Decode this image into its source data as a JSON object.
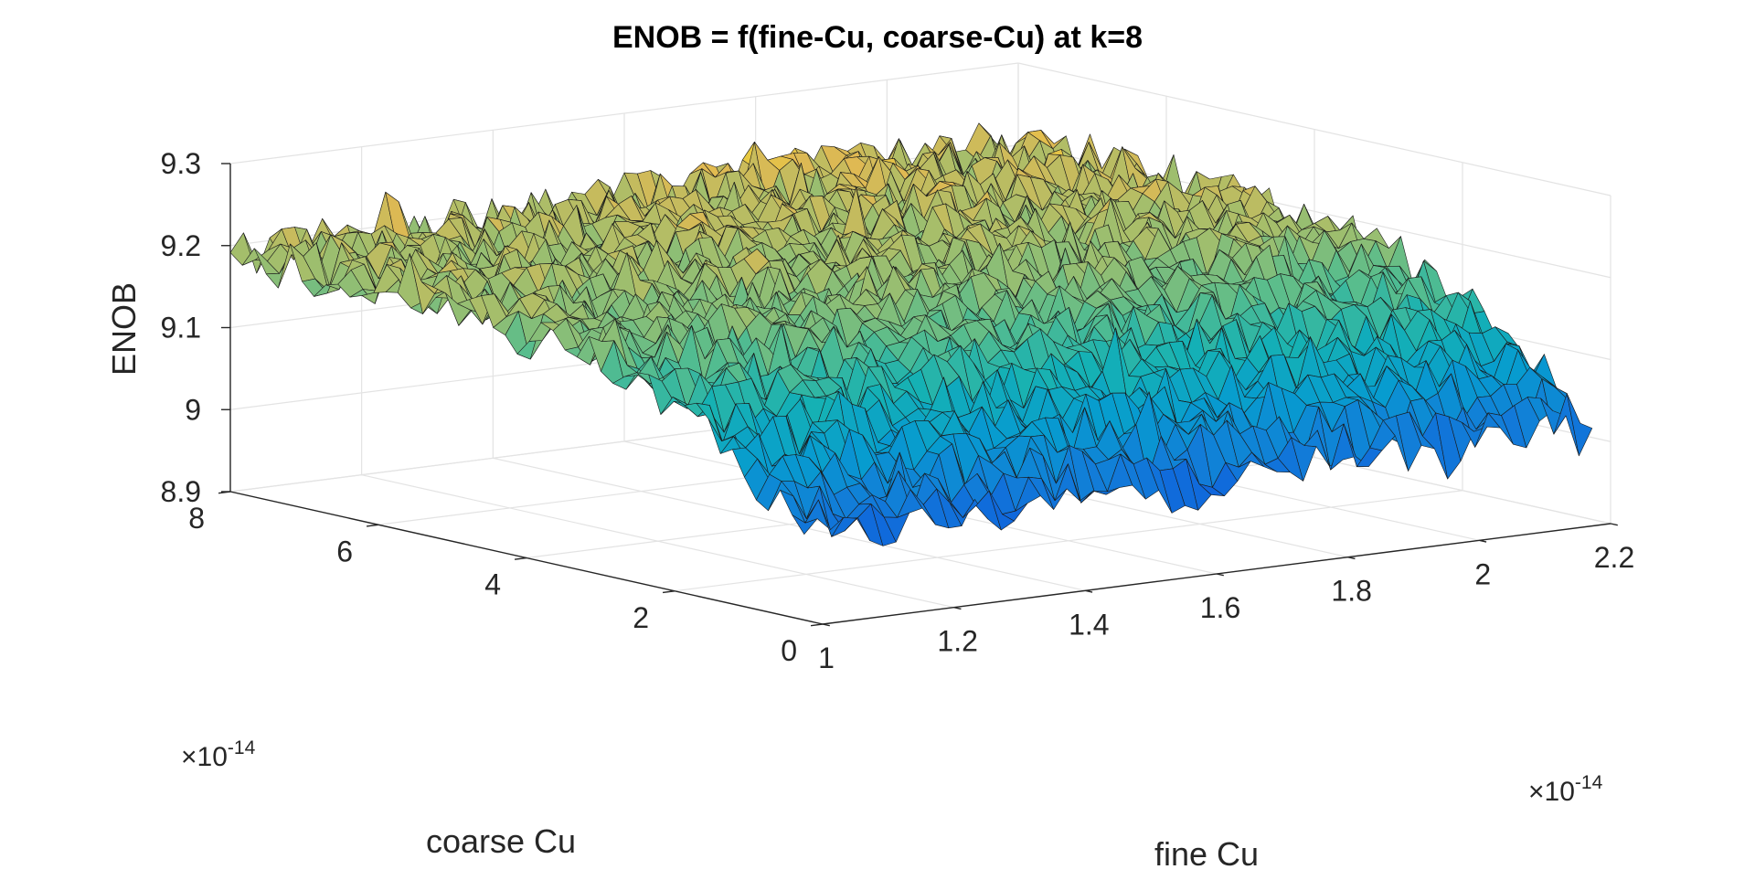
{
  "chart_data": {
    "type": "surface",
    "title": "ENOB = f(fine-Cu, coarse-Cu) at k=8",
    "xlabel": "fine Cu",
    "ylabel": "coarse Cu",
    "zlabel": "ENOB",
    "x_multiplier": "×10",
    "x_multiplier_exp": "-14",
    "y_multiplier": "×10",
    "y_multiplier_exp": "-14",
    "xlim": [
      1,
      2.2
    ],
    "ylim": [
      0,
      8
    ],
    "zlim": [
      8.9,
      9.3
    ],
    "x_ticks": [
      "1",
      "1.2",
      "1.4",
      "1.6",
      "1.8",
      "2",
      "2.2"
    ],
    "y_ticks": [
      "0",
      "2",
      "4",
      "6",
      "8"
    ],
    "z_ticks": [
      "8.9",
      "9",
      "9.1",
      "9.2",
      "9.3"
    ],
    "grid": true,
    "colormap": "parula",
    "surface_extent": {
      "x": [
        1,
        2.2
      ],
      "y": [
        0.25,
        8
      ]
    },
    "trend": {
      "description_of_shape": "ENOB rises with coarse Cu and saturates; noisy surface",
      "z_at_coarse_low": 8.97,
      "z_at_coarse_high": 9.2,
      "saturation_coarse": 3.0,
      "noise_amplitude": 0.03
    }
  }
}
